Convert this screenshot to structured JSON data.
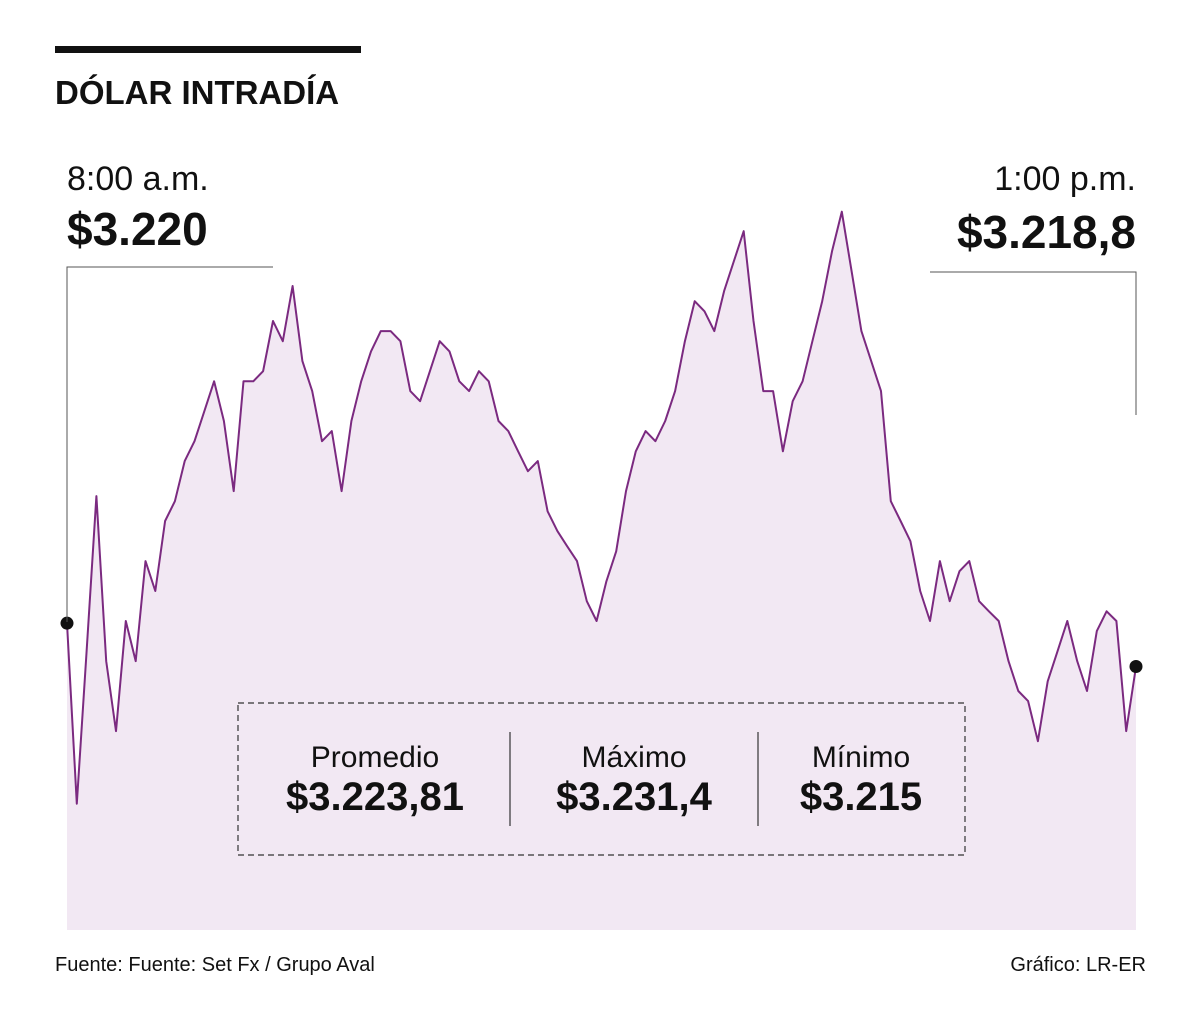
{
  "chart_data": {
    "type": "area",
    "title": "DÓLAR INTRADÍA",
    "start": {
      "time": "8:00 a.m.",
      "price": "$3.220"
    },
    "end": {
      "time": "1:00 p.m.",
      "price": "$3.218,8"
    },
    "stats": [
      {
        "label": "Promedio",
        "value": "$3.223,81"
      },
      {
        "label": "Máximo",
        "value": "$3.231,4"
      },
      {
        "label": "Mínimo",
        "value": "$3.215"
      }
    ],
    "source": "Fuente: Fuente: Set Fx / Grupo Aval",
    "credit": "Gráfico: LR-ER",
    "line_color": "#7b2a80",
    "fill_color": "#f2e8f3",
    "ylim": [
      3211.5,
      3232
    ],
    "values": [
      3220,
      3215.0,
      3219.22,
      3223.52,
      3218.95,
      3217.01,
      3220.06,
      3218.95,
      3221.72,
      3220.89,
      3222.83,
      3223.38,
      3224.49,
      3225.04,
      3225.87,
      3226.7,
      3225.6,
      3223.66,
      3226.7,
      3226.7,
      3226.98,
      3228.37,
      3227.81,
      3229.34,
      3227.26,
      3226.43,
      3225.04,
      3225.32,
      3223.66,
      3225.6,
      3226.7,
      3227.53,
      3228.09,
      3228.09,
      3227.81,
      3226.43,
      3226.15,
      3226.98,
      3227.81,
      3227.53,
      3226.7,
      3226.43,
      3226.98,
      3226.7,
      3225.6,
      3225.32,
      3224.76,
      3224.21,
      3224.49,
      3223.1,
      3222.55,
      3222.13,
      3221.72,
      3220.61,
      3220.06,
      3221.16,
      3221.99,
      3223.66,
      3224.76,
      3225.32,
      3225.04,
      3225.6,
      3226.43,
      3227.81,
      3228.92,
      3228.64,
      3228.09,
      3229.2,
      3230.03,
      3230.86,
      3228.37,
      3226.43,
      3226.43,
      3224.76,
      3226.15,
      3226.7,
      3227.81,
      3228.92,
      3230.3,
      3231.4,
      3229.75,
      3228.09,
      3227.26,
      3226.43,
      3223.38,
      3222.83,
      3222.27,
      3220.89,
      3220.06,
      3221.72,
      3220.61,
      3221.44,
      3221.72,
      3220.61,
      3220.33,
      3220.06,
      3218.95,
      3218.12,
      3217.84,
      3216.73,
      3218.39,
      3219.22,
      3220.06,
      3218.95,
      3218.12,
      3219.78,
      3220.33,
      3220.06,
      3217.01,
      3218.8
    ]
  }
}
